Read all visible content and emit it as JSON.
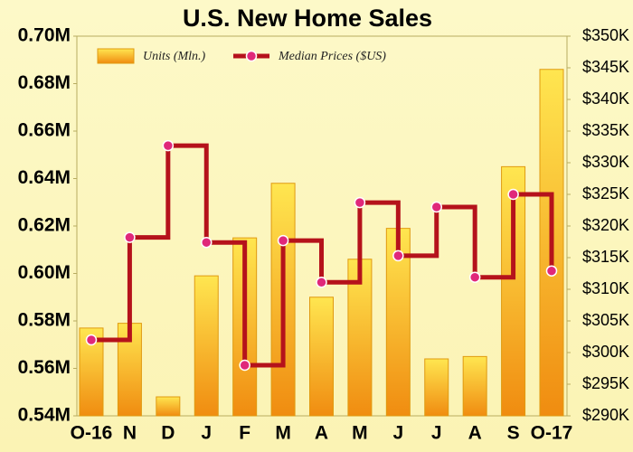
{
  "chart_data": {
    "type": "bar",
    "title": "U.S. New Home Sales",
    "categories": [
      "O-16",
      "N",
      "D",
      "J",
      "F",
      "M",
      "A",
      "M",
      "J",
      "J",
      "A",
      "S",
      "O-17"
    ],
    "series": [
      {
        "name": "Units (Mln.)",
        "type": "bar",
        "color": "#f5a01a",
        "axis": "y",
        "values": [
          0.577,
          0.579,
          0.548,
          0.599,
          0.615,
          0.638,
          0.59,
          0.606,
          0.619,
          0.564,
          0.565,
          0.645,
          0.686
        ]
      },
      {
        "name": "Median Prices ($US)",
        "type": "line",
        "step": true,
        "color": "#b5121b",
        "marker_color": "#e0287a",
        "axis": "y2",
        "values": [
          302,
          318.2,
          332.7,
          317.4,
          298,
          317.7,
          311.1,
          323.7,
          315.3,
          323,
          311.9,
          325,
          312.9
        ]
      }
    ],
    "ylim": [
      0.54,
      0.7
    ],
    "yticks": [
      {
        "value": 0.54,
        "label": "0.54M"
      },
      {
        "value": 0.56,
        "label": "0.56M"
      },
      {
        "value": 0.58,
        "label": "0.58M"
      },
      {
        "value": 0.6,
        "label": "0.60M"
      },
      {
        "value": 0.62,
        "label": "0.62M"
      },
      {
        "value": 0.64,
        "label": "0.64M"
      },
      {
        "value": 0.66,
        "label": "0.66M"
      },
      {
        "value": 0.68,
        "label": "0.68M"
      },
      {
        "value": 0.7,
        "label": "0.70M"
      }
    ],
    "y2lim": [
      290,
      350
    ],
    "y2ticks": [
      {
        "value": 290,
        "label": "$290K"
      },
      {
        "value": 295,
        "label": "$295K"
      },
      {
        "value": 300,
        "label": "$300K"
      },
      {
        "value": 305,
        "label": "$305K"
      },
      {
        "value": 310,
        "label": "$310K"
      },
      {
        "value": 315,
        "label": "$315K"
      },
      {
        "value": 320,
        "label": "$320K"
      },
      {
        "value": 325,
        "label": "$325K"
      },
      {
        "value": 330,
        "label": "$330K"
      },
      {
        "value": 335,
        "label": "$335K"
      },
      {
        "value": 340,
        "label": "$340K"
      },
      {
        "value": 345,
        "label": "$345K"
      },
      {
        "value": 350,
        "label": "$350K"
      }
    ],
    "grid": false,
    "legend": "top"
  }
}
